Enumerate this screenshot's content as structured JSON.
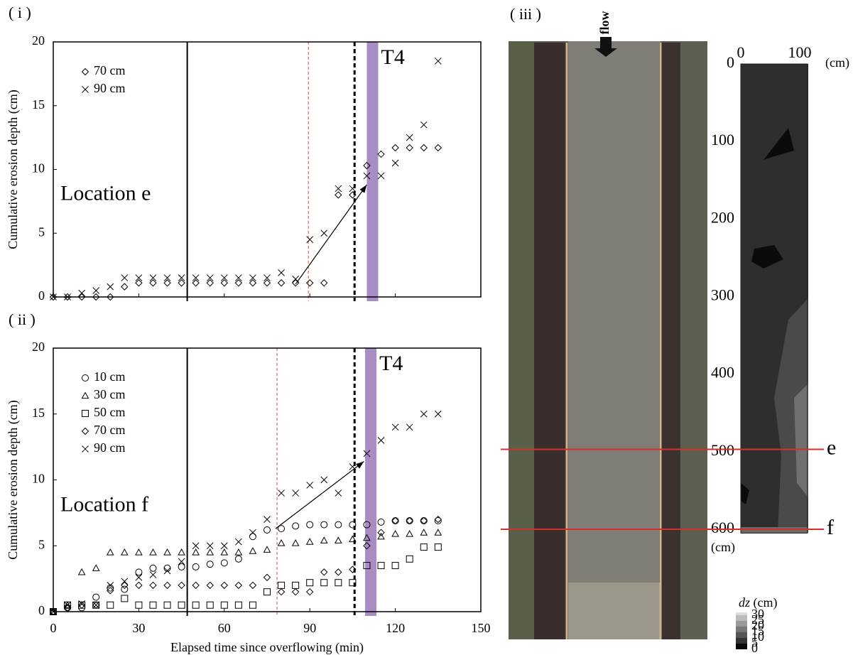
{
  "panels": [
    "( i )",
    "( ii )",
    "( iii )"
  ],
  "chart_data": [
    {
      "type": "scatter",
      "ylabel": "Cumulative erosion depth (cm)",
      "annotation": "Location e",
      "event_label": "T4",
      "xlim": [
        0,
        150
      ],
      "xticks": [
        0,
        30,
        60,
        90,
        120,
        150
      ],
      "ylim": [
        0,
        20
      ],
      "yticks": [
        0,
        5,
        10,
        15,
        20
      ],
      "legend": "upper left",
      "x": [
        0,
        5,
        10,
        15,
        20,
        25,
        30,
        35,
        40,
        45,
        50,
        55,
        60,
        65,
        70,
        75,
        80,
        85,
        90,
        95,
        100,
        105,
        110,
        115,
        120,
        125,
        130,
        135
      ],
      "series": [
        {
          "name": "70 cm",
          "marker": "diamond",
          "color": "#000000",
          "values": [
            0,
            0,
            0,
            0,
            0,
            0.8,
            1.1,
            1.1,
            1.1,
            1.1,
            1.1,
            1.1,
            1.1,
            1.1,
            1.1,
            1.1,
            1.1,
            1.1,
            1.1,
            1.1,
            8.0,
            8.0,
            10.3,
            11.2,
            11.7,
            11.7,
            11.7,
            11.7
          ]
        },
        {
          "name": "90 cm",
          "marker": "x",
          "color": "#000000",
          "values": [
            0,
            0,
            0.3,
            0.5,
            0.8,
            1.5,
            1.5,
            1.5,
            1.5,
            1.5,
            1.5,
            1.5,
            1.5,
            1.5,
            1.5,
            1.5,
            1.9,
            1.4,
            4.5,
            5.0,
            8.5,
            8.5,
            9.5,
            9.5,
            10.5,
            12.5,
            13.5,
            18.5
          ]
        }
      ],
      "vlines": [
        {
          "value": 47,
          "style": "solid",
          "color": "#000000"
        },
        {
          "value": 89.5,
          "style": "dashed",
          "color": "#e0403a"
        },
        {
          "value": 105.7,
          "style": "dashed-bold",
          "color": "#000000"
        }
      ],
      "band": [
        110,
        114
      ],
      "band_color": "#a98cc4",
      "arrow": {
        "from": [
          85,
          1
        ],
        "to": [
          110,
          8.8
        ]
      }
    },
    {
      "type": "scatter",
      "ylabel": "Cumulative erosion depth (cm)",
      "xlabel": "Elapsed time since overflowing (min)",
      "annotation": "Location f",
      "event_label": "T4",
      "xlim": [
        0,
        150
      ],
      "xticks": [
        0,
        30,
        60,
        90,
        120,
        150
      ],
      "ylim": [
        0,
        20
      ],
      "yticks": [
        0,
        5,
        10,
        15,
        20
      ],
      "legend": "upper left",
      "x": [
        0,
        5,
        10,
        15,
        20,
        25,
        30,
        35,
        40,
        45,
        50,
        55,
        60,
        65,
        70,
        75,
        80,
        85,
        90,
        95,
        100,
        105,
        110,
        115,
        120,
        125,
        130,
        135
      ],
      "series": [
        {
          "name": "10 cm",
          "marker": "circle",
          "color": "#000000",
          "values": [
            0,
            0.3,
            0.3,
            1.1,
            1.8,
            1.7,
            3.0,
            3.3,
            3.3,
            3.4,
            3.4,
            3.6,
            3.7,
            4.0,
            5.7,
            6.2,
            6.3,
            6.5,
            6.6,
            6.6,
            6.6,
            6.6,
            6.6,
            6.8,
            6.9,
            6.9,
            6.9,
            6.9
          ]
        },
        {
          "name": "30 cm",
          "marker": "triangle",
          "color": "#000000",
          "values": [
            0,
            0.5,
            3.0,
            3.3,
            4.5,
            4.5,
            4.5,
            4.5,
            4.5,
            4.5,
            4.5,
            4.5,
            4.5,
            4.5,
            4.6,
            4.7,
            5.2,
            5.2,
            5.3,
            5.4,
            5.4,
            5.5,
            5.6,
            5.7,
            5.9,
            5.9,
            6.0,
            6.0
          ]
        },
        {
          "name": "50 cm",
          "marker": "square",
          "color": "#000000",
          "values": [
            0,
            0.5,
            0.5,
            0.5,
            0.5,
            1.0,
            0.5,
            0.5,
            0.5,
            0.5,
            0.5,
            0.5,
            0.5,
            0.5,
            0.5,
            1.5,
            2.0,
            2.0,
            2.2,
            2.2,
            2.2,
            2.2,
            3.5,
            3.5,
            3.5,
            4.0,
            4.9,
            4.9
          ]
        },
        {
          "name": "70 cm",
          "marker": "diamond",
          "color": "#000000",
          "values": [
            0,
            0.3,
            0.5,
            0.5,
            1.6,
            2.0,
            2.0,
            2.0,
            2.0,
            2.0,
            2.0,
            2.0,
            2.0,
            2.0,
            2.0,
            2.6,
            1.5,
            1.5,
            1.5,
            3.0,
            3.0,
            3.2,
            5.0,
            6.0,
            6.9,
            6.9,
            6.9,
            7.0
          ]
        },
        {
          "name": "90 cm",
          "marker": "x",
          "color": "#000000",
          "values": [
            0,
            0.5,
            0.6,
            0.5,
            2.0,
            2.3,
            2.6,
            2.8,
            3.1,
            3.8,
            5.0,
            5.0,
            5.0,
            5.3,
            6.0,
            7.0,
            9.0,
            9.0,
            9.6,
            10.0,
            9.0,
            11.0,
            12.0,
            13.0,
            14.0,
            14.0,
            15.0,
            15.0
          ]
        }
      ],
      "vlines": [
        {
          "value": 47,
          "style": "solid",
          "color": "#000000"
        },
        {
          "value": 78.5,
          "style": "dashed",
          "color": "#e0403a"
        },
        {
          "value": 105.7,
          "style": "dashed-bold",
          "color": "#000000"
        }
      ],
      "band": [
        109.4,
        113.4
      ],
      "band_color": "#a98cc4",
      "arrow": {
        "from": [
          78,
          6.3
        ],
        "to": [
          109,
          11.4
        ]
      }
    },
    {
      "type": "heatmap",
      "flow_label": "flow",
      "xunit": "(cm)",
      "yunit": "(cm)",
      "xlim": [
        0,
        113
      ],
      "xticks": [
        0,
        100
      ],
      "ylim": [
        0,
        605
      ],
      "yticks": [
        0,
        100,
        200,
        300,
        400,
        500,
        600
      ],
      "sections": [
        {
          "label": "e",
          "value": 497,
          "color": "#d6302a"
        },
        {
          "label": "f",
          "value": 600,
          "color": "#d6302a"
        }
      ],
      "colorbar_label": {
        "var": "dz",
        "unit": "(cm)"
      },
      "colorbar_ticks": [
        0,
        5,
        10,
        15,
        20,
        25,
        30
      ],
      "colorbar_colors": [
        "#0a0a0a",
        "#333333",
        "#555555",
        "#777777",
        "#999999",
        "#bbbbbb",
        "#dddddd"
      ]
    }
  ]
}
